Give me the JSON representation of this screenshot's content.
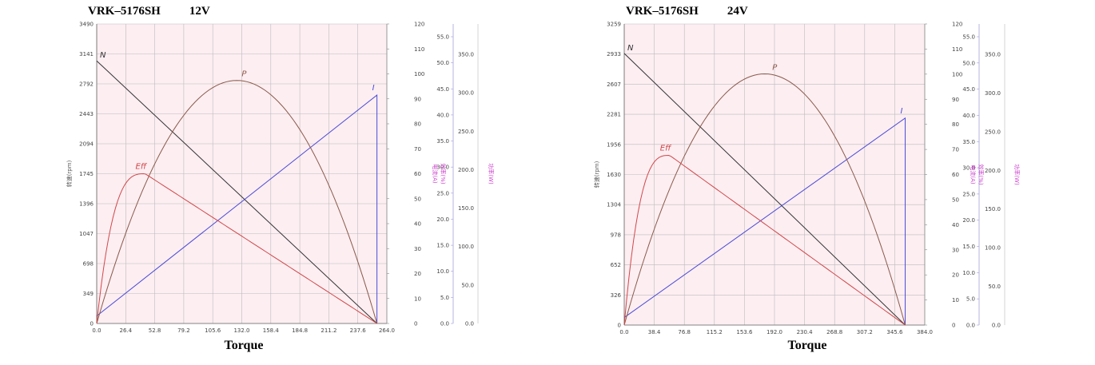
{
  "chart_data": [
    {
      "type": "line",
      "title_parts": [
        "VRK–5176SH",
        "12V"
      ],
      "xlabel": "Torque",
      "ylabel_left": "转速(rpm)",
      "ylabel_right1": "电流(A)",
      "ylabel_right2": "效率(%)",
      "ylabel_right3": "功率(W)",
      "x_ticks": [
        "0.0",
        "26.4",
        "52.8",
        "79.2",
        "105.6",
        "132.0",
        "158.4",
        "184.8",
        "211.2",
        "237.6",
        "264.0"
      ],
      "y_left_ticks": [
        "0",
        "349",
        "698",
        "1047",
        "1396",
        "1745",
        "2094",
        "2443",
        "2792",
        "3141",
        "3490"
      ],
      "y_right1_ticks": [
        "0",
        "10",
        "20",
        "30",
        "40",
        "50",
        "60",
        "70",
        "80",
        "90",
        "100",
        "110",
        "120"
      ],
      "y_right2_ticks": [
        "0.0",
        "5.0",
        "10.0",
        "15.0",
        "20.0",
        "25.0",
        "30.0",
        "35.0",
        "40.0",
        "45.0",
        "50.0",
        "55.0"
      ],
      "y_right3_ticks": [
        "0.0",
        "50.0",
        "100.0",
        "150.0",
        "200.0",
        "250.0",
        "300.0",
        "350.0"
      ],
      "xlim": [
        0,
        264
      ],
      "y_left_lim": [
        0,
        3490
      ],
      "y_right1_lim": [
        0,
        120
      ],
      "y_right2_lim": [
        0,
        55
      ],
      "y_right3_lim": [
        0,
        350
      ],
      "grid": true,
      "background": "#fdeef2",
      "series": [
        {
          "name": "N",
          "axis": "left",
          "color": "#333333",
          "x": [
            0,
            255
          ],
          "y": [
            3060,
            0
          ]
        },
        {
          "name": "I",
          "axis": "right1",
          "color": "#4b4bd6",
          "x": [
            0,
            255,
            255
          ],
          "y": [
            3,
            91.5,
            0
          ]
        },
        {
          "name": "P",
          "axis": "right3",
          "color": "#8a5a4a",
          "peak_x": 127.5,
          "peak_y": 284,
          "end_x": 255
        },
        {
          "name": "Eff",
          "axis": "right2",
          "color": "#d04848",
          "peak_x": 44,
          "peak_y": 27.5,
          "end_x": 255
        }
      ]
    },
    {
      "type": "line",
      "title_parts": [
        "VRK–5176SH",
        "24V"
      ],
      "xlabel": "Torque",
      "ylabel_left": "转速(rpm)",
      "ylabel_right1": "电流(A)",
      "ylabel_right2": "效率(%)",
      "ylabel_right3": "功率(W)",
      "x_ticks": [
        "0.0",
        "38.4",
        "76.8",
        "115.2",
        "153.6",
        "192.0",
        "230.4",
        "268.8",
        "307.2",
        "345.6",
        "384.0"
      ],
      "y_left_ticks": [
        "0",
        "326",
        "652",
        "978",
        "1304",
        "1630",
        "1956",
        "2281",
        "2607",
        "2933",
        "3259"
      ],
      "y_right1_ticks": [
        "0",
        "10",
        "20",
        "30",
        "40",
        "50",
        "60",
        "70",
        "80",
        "90",
        "100",
        "110",
        "120"
      ],
      "y_right2_ticks": [
        "0.0",
        "5.0",
        "10.0",
        "15.0",
        "20.0",
        "25.0",
        "30.0",
        "35.0",
        "40.0",
        "45.0",
        "50.0",
        "55.0"
      ],
      "y_right3_ticks": [
        "0.0",
        "50.0",
        "100.0",
        "150.0",
        "200.0",
        "250.0",
        "300.0",
        "350.0"
      ],
      "xlim": [
        0,
        384
      ],
      "y_left_lim": [
        0,
        3259
      ],
      "y_right1_lim": [
        0,
        120
      ],
      "y_right2_lim": [
        0,
        55
      ],
      "y_right3_lim": [
        0,
        350
      ],
      "grid": true,
      "background": "#fdeef2",
      "series": [
        {
          "name": "N",
          "axis": "left",
          "color": "#333333",
          "x": [
            0,
            359
          ],
          "y": [
            2940,
            0
          ]
        },
        {
          "name": "I",
          "axis": "right1",
          "color": "#4b4bd6",
          "x": [
            0,
            359,
            359
          ],
          "y": [
            3,
            82.5,
            0
          ]
        },
        {
          "name": "P",
          "axis": "right3",
          "color": "#8a5a4a",
          "peak_x": 183,
          "peak_y": 292,
          "end_x": 359
        },
        {
          "name": "Eff",
          "axis": "right2",
          "color": "#d04848",
          "peak_x": 58,
          "peak_y": 31,
          "end_x": 359
        }
      ]
    }
  ]
}
